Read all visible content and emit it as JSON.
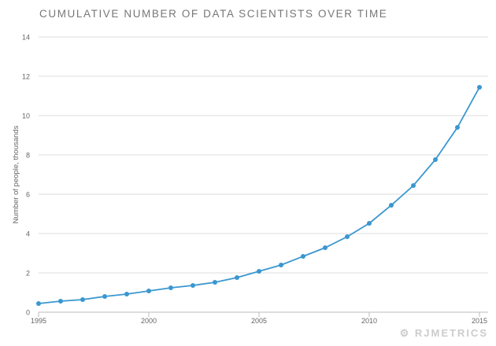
{
  "chart_data": {
    "type": "line",
    "title": "CUMULATIVE NUMBER OF DATA SCIENTISTS OVER TIME",
    "xlabel": "",
    "ylabel": "Number of people, thousands",
    "x": [
      1995,
      1996,
      1997,
      1998,
      1999,
      2000,
      2001,
      2002,
      2003,
      2004,
      2005,
      2006,
      2007,
      2008,
      2009,
      2010,
      2011,
      2012,
      2013,
      2014,
      2015
    ],
    "values": [
      0.44,
      0.56,
      0.64,
      0.8,
      0.92,
      1.08,
      1.24,
      1.36,
      1.52,
      1.76,
      2.08,
      2.4,
      2.84,
      3.28,
      3.84,
      4.52,
      5.44,
      6.44,
      7.76,
      9.4,
      11.44
    ],
    "xlim": [
      1995,
      2015
    ],
    "ylim": [
      0,
      14
    ],
    "xticks": [
      "1995",
      "2000",
      "2005",
      "2010",
      "2015"
    ],
    "yticks": [
      "0",
      "2",
      "4",
      "6",
      "8",
      "10",
      "12",
      "14"
    ],
    "grid": "horizontal",
    "line_color": "#3a97d0",
    "grid_color": "#dddddd"
  },
  "branding": {
    "logo": "RJMETRICS"
  }
}
